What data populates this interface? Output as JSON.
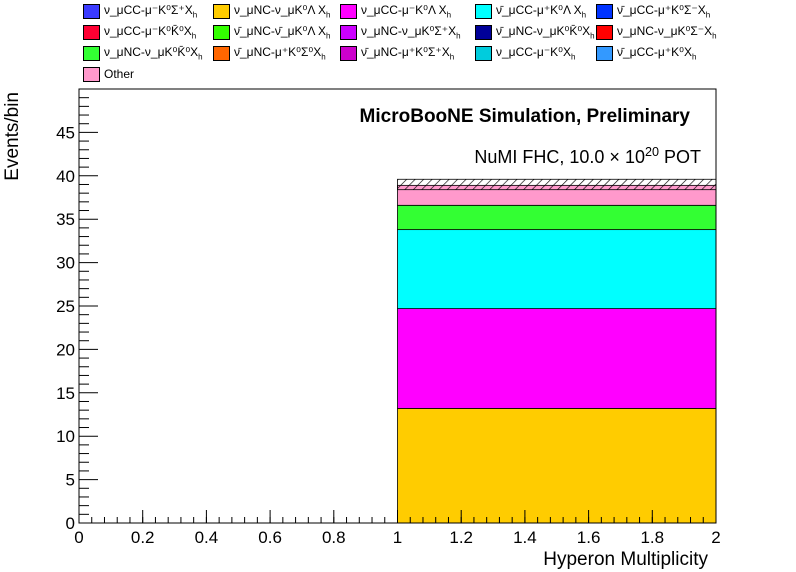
{
  "chart_data": {
    "type": "bar",
    "stacked": true,
    "title": "MicroBooNE Simulation, Preliminary",
    "subtitle": "NuMI FHC, 10.0  × 10^20 POT",
    "xlabel": "Hyperon Multiplicity",
    "ylabel": "Events/bin",
    "xlim": [
      0,
      2
    ],
    "ylim": [
      0,
      50
    ],
    "x_ticks": [
      "0",
      "0.2",
      "0.4",
      "0.6",
      "0.8",
      "1",
      "1.2",
      "1.4",
      "1.6",
      "1.8",
      "2"
    ],
    "y_ticks": [
      "0",
      "5",
      "10",
      "15",
      "20",
      "25",
      "30",
      "35",
      "40",
      "45"
    ],
    "bins": [
      [
        0,
        1
      ],
      [
        1,
        2
      ]
    ],
    "series": [
      {
        "name": "ν_μCC-μ⁻K⁰Σ⁺X_h",
        "color": "#3b3bff",
        "values": [
          0,
          0
        ]
      },
      {
        "name": "ν_μNC-ν_μK⁰Λ X_h",
        "color": "#ffcc00",
        "values": [
          0,
          13.2
        ]
      },
      {
        "name": "ν_μCC-μ⁻K⁰Λ X_h",
        "color": "#ff00ff",
        "values": [
          0,
          11.5
        ]
      },
      {
        "name": "ν̄_μCC-μ⁺K⁰Λ X_h",
        "color": "#00ffff",
        "values": [
          0,
          9.1
        ]
      },
      {
        "name": "ν̄_μCC-μ⁺K⁰Σ⁻X_h",
        "color": "#0033ff",
        "values": [
          0,
          0
        ]
      },
      {
        "name": "ν_μCC-μ⁻K⁰K̄⁰X_h",
        "color": "#ff0033",
        "values": [
          0,
          0
        ]
      },
      {
        "name": "ν̄_μNC-ν̄_μK⁰Λ X_h",
        "color": "#33ff00",
        "values": [
          0,
          0
        ]
      },
      {
        "name": "ν_μNC-ν_μK⁰Σ⁺X_h",
        "color": "#cc00ff",
        "values": [
          0,
          0
        ]
      },
      {
        "name": "ν̄_μNC-ν_μK⁰K̄⁰X_h",
        "color": "#000099",
        "values": [
          0,
          0
        ]
      },
      {
        "name": "ν_μNC-ν_μK⁰Σ⁻X_h",
        "color": "#ff0000",
        "values": [
          0,
          0
        ]
      },
      {
        "name": "ν_μNC-ν_μK⁰K̄⁰X_h",
        "color": "#33ff33",
        "values": [
          0,
          2.8
        ]
      },
      {
        "name": "ν̄_μNC-μ⁺K⁰Σ⁰X_h",
        "color": "#ff6600",
        "values": [
          0,
          0
        ]
      },
      {
        "name": "ν̄_μNC-μ⁺K⁰Σ⁺X_h",
        "color": "#cc00cc",
        "values": [
          0,
          0
        ]
      },
      {
        "name": "ν_μCC-μ⁻K⁰X_h",
        "color": "#00ccdd",
        "values": [
          0,
          0
        ]
      },
      {
        "name": "ν̄_μCC-μ⁺K⁰X_h",
        "color": "#3399ff",
        "values": [
          0,
          0
        ]
      },
      {
        "name": "Other",
        "color": "#ff99cc",
        "values": [
          0,
          2.3
        ]
      }
    ],
    "uncertainty": {
      "hatched": true,
      "bin": [
        1,
        2
      ],
      "low": 38.4,
      "high": 39.6
    },
    "grid": false,
    "legend_position": "top"
  }
}
